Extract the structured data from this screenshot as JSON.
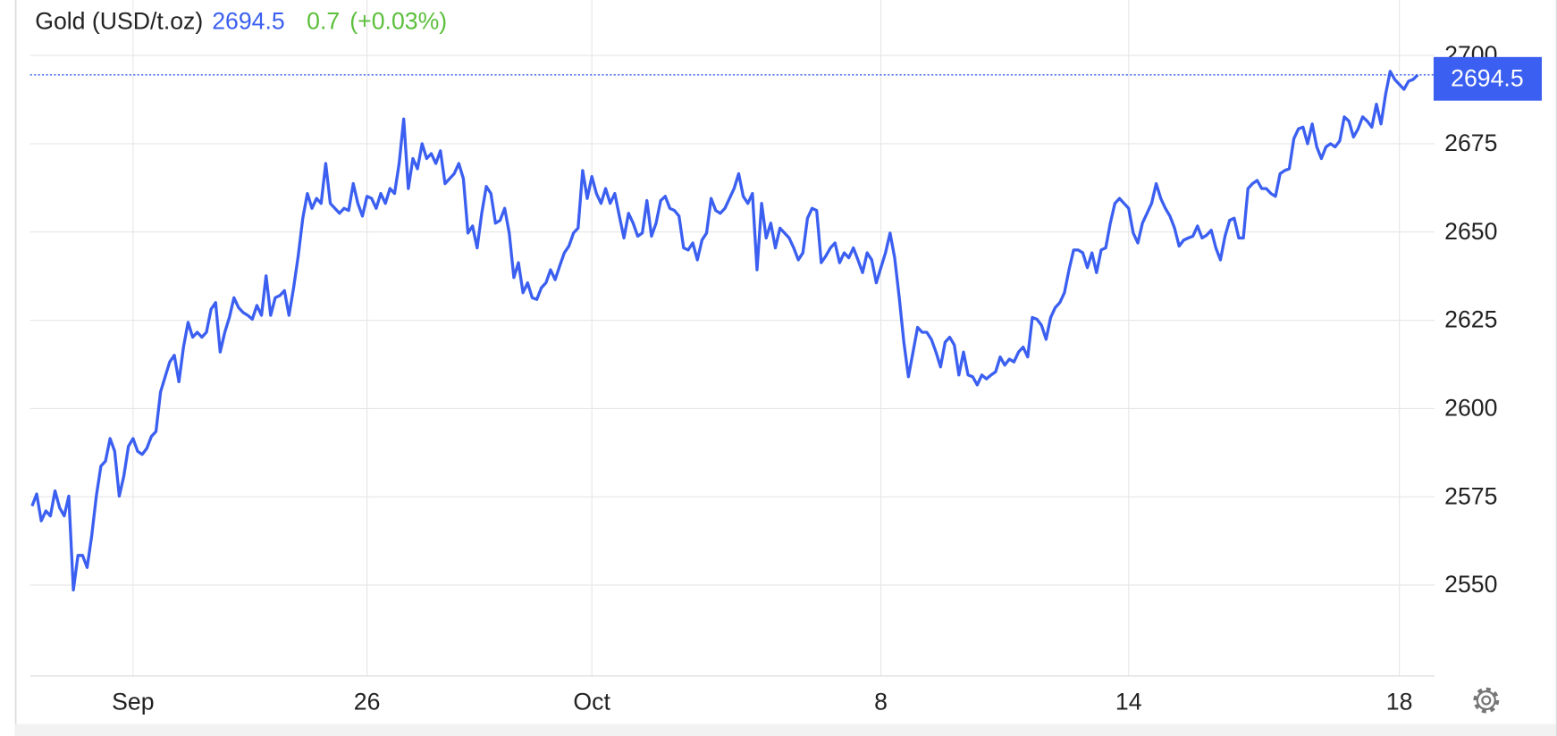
{
  "chart_data": {
    "type": "line",
    "title": "Gold (USD/t.oz)",
    "last_price": 2694.5,
    "change": 0.7,
    "change_pct_label": "(+0.03%)",
    "xlim": [
      0,
      302
    ],
    "ylim": [
      2524.4,
      2715.7
    ],
    "yticks": [
      2550,
      2575,
      2600,
      2625,
      2650,
      2675,
      2700
    ],
    "xticks": [
      {
        "value": 22,
        "label": "Sep"
      },
      {
        "value": 73,
        "label": "26"
      },
      {
        "value": 122,
        "label": "Oct"
      },
      {
        "value": 185,
        "label": "8"
      },
      {
        "value": 239,
        "label": "14"
      },
      {
        "value": 298,
        "label": "18"
      }
    ],
    "grid": true,
    "series": [
      {
        "name": "Gold",
        "color": "#3b5ff0",
        "values": [
          2572.4,
          2575.8,
          2568.2,
          2571.0,
          2569.6,
          2576.7,
          2571.9,
          2569.6,
          2575.2,
          2548.6,
          2558.4,
          2558.4,
          2555.0,
          2564.0,
          2575.2,
          2583.7,
          2585.1,
          2591.5,
          2587.9,
          2575.2,
          2580.9,
          2589.3,
          2591.5,
          2587.9,
          2587.0,
          2588.7,
          2592.1,
          2593.5,
          2604.7,
          2609.0,
          2613.2,
          2615.1,
          2607.6,
          2617.4,
          2624.4,
          2620.2,
          2621.6,
          2620.2,
          2621.6,
          2628.1,
          2630.0,
          2616.0,
          2621.6,
          2625.8,
          2631.4,
          2628.6,
          2627.2,
          2626.4,
          2625.3,
          2629.2,
          2626.4,
          2637.6,
          2626.4,
          2631.4,
          2632.0,
          2633.4,
          2626.4,
          2634.2,
          2643.2,
          2653.9,
          2660.9,
          2656.7,
          2659.5,
          2658.1,
          2669.4,
          2658.1,
          2656.7,
          2655.3,
          2656.7,
          2656.1,
          2663.7,
          2658.1,
          2654.5,
          2660.1,
          2659.5,
          2656.7,
          2660.9,
          2658.1,
          2662.3,
          2660.9,
          2669.4,
          2682.0,
          2662.3,
          2670.8,
          2667.9,
          2675.0,
          2670.8,
          2672.2,
          2669.4,
          2673.0,
          2663.7,
          2665.1,
          2666.5,
          2669.4,
          2665.1,
          2649.7,
          2651.7,
          2645.5,
          2655.3,
          2662.9,
          2660.9,
          2652.5,
          2653.3,
          2656.7,
          2649.7,
          2637.1,
          2641.3,
          2632.8,
          2635.6,
          2631.4,
          2630.9,
          2634.2,
          2635.6,
          2639.3,
          2636.5,
          2640.4,
          2644.1,
          2646.0,
          2649.7,
          2651.1,
          2667.4,
          2659.5,
          2665.7,
          2660.9,
          2658.1,
          2662.3,
          2658.1,
          2660.9,
          2654.5,
          2648.3,
          2655.3,
          2652.5,
          2648.8,
          2649.7,
          2658.9,
          2648.8,
          2652.5,
          2658.9,
          2660.1,
          2656.7,
          2656.1,
          2654.5,
          2645.5,
          2644.9,
          2646.9,
          2642.1,
          2647.7,
          2649.7,
          2659.5,
          2656.1,
          2655.3,
          2656.7,
          2659.5,
          2662.3,
          2666.5,
          2660.1,
          2658.1,
          2660.9,
          2639.3,
          2658.1,
          2648.3,
          2652.5,
          2645.5,
          2651.1,
          2649.7,
          2648.3,
          2645.5,
          2642.1,
          2644.1,
          2653.9,
          2656.7,
          2656.1,
          2641.3,
          2643.2,
          2645.5,
          2646.9,
          2641.3,
          2644.1,
          2642.7,
          2645.5,
          2642.1,
          2638.5,
          2644.1,
          2642.1,
          2635.6,
          2639.9,
          2644.1,
          2649.7,
          2642.7,
          2631.4,
          2618.8,
          2609.0,
          2616.0,
          2623.0,
          2621.6,
          2621.6,
          2619.6,
          2616.0,
          2611.8,
          2618.8,
          2620.2,
          2618.0,
          2609.5,
          2616.0,
          2609.5,
          2609.0,
          2606.7,
          2609.5,
          2608.4,
          2609.5,
          2610.4,
          2614.6,
          2612.3,
          2614.0,
          2613.2,
          2616.0,
          2617.4,
          2614.6,
          2625.8,
          2625.3,
          2623.6,
          2619.6,
          2625.8,
          2628.6,
          2630.0,
          2632.8,
          2639.3,
          2644.9,
          2644.9,
          2644.1,
          2639.9,
          2644.1,
          2638.5,
          2644.9,
          2645.5,
          2652.5,
          2658.1,
          2659.5,
          2658.1,
          2656.7,
          2649.7,
          2646.9,
          2652.5,
          2655.3,
          2658.1,
          2663.7,
          2659.5,
          2656.7,
          2654.5,
          2651.1,
          2646.0,
          2647.7,
          2648.3,
          2648.8,
          2651.7,
          2648.3,
          2649.1,
          2650.5,
          2645.5,
          2642.1,
          2648.8,
          2653.3,
          2653.9,
          2648.3,
          2648.3,
          2662.3,
          2663.7,
          2664.6,
          2662.3,
          2662.3,
          2660.9,
          2660.1,
          2666.5,
          2667.4,
          2667.9,
          2676.4,
          2679.2,
          2679.7,
          2675.0,
          2680.6,
          2674.1,
          2670.8,
          2674.1,
          2675.0,
          2674.1,
          2675.8,
          2682.6,
          2681.4,
          2676.9,
          2679.2,
          2682.6,
          2681.4,
          2679.7,
          2686.2,
          2680.6,
          2689.0,
          2695.5,
          2693.2,
          2691.8,
          2690.4,
          2692.7,
          2693.2,
          2694.5
        ]
      }
    ]
  }
}
